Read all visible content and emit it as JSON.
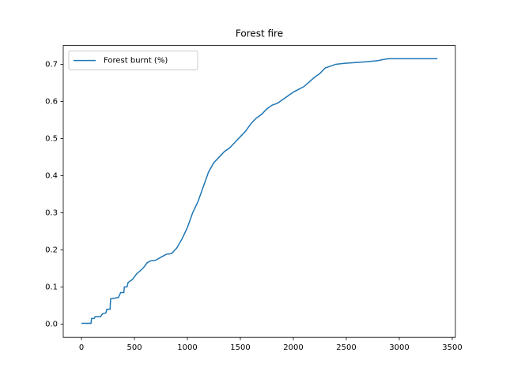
{
  "chart_data": {
    "type": "line",
    "title": "Forest fire",
    "x": [
      0,
      90,
      95,
      120,
      130,
      180,
      200,
      230,
      240,
      270,
      275,
      320,
      350,
      370,
      400,
      405,
      430,
      440,
      480,
      520,
      580,
      620,
      650,
      700,
      750,
      800,
      850,
      900,
      950,
      1000,
      1050,
      1100,
      1150,
      1200,
      1250,
      1300,
      1350,
      1400,
      1450,
      1500,
      1550,
      1600,
      1650,
      1700,
      1750,
      1800,
      1850,
      1900,
      1950,
      2000,
      2100,
      2200,
      2250,
      2300,
      2400,
      2500,
      2600,
      2700,
      2800,
      2850,
      2900,
      3360
    ],
    "series": [
      {
        "name": "Forest burnt (%)",
        "color": "#1f77b4",
        "values": [
          0.002,
          0.002,
          0.015,
          0.015,
          0.02,
          0.02,
          0.028,
          0.03,
          0.04,
          0.04,
          0.068,
          0.07,
          0.072,
          0.085,
          0.085,
          0.1,
          0.1,
          0.112,
          0.12,
          0.135,
          0.15,
          0.165,
          0.17,
          0.172,
          0.18,
          0.188,
          0.19,
          0.205,
          0.23,
          0.26,
          0.3,
          0.33,
          0.37,
          0.41,
          0.435,
          0.45,
          0.465,
          0.475,
          0.49,
          0.505,
          0.52,
          0.54,
          0.555,
          0.565,
          0.58,
          0.59,
          0.595,
          0.605,
          0.615,
          0.625,
          0.64,
          0.665,
          0.675,
          0.69,
          0.7,
          0.703,
          0.705,
          0.707,
          0.71,
          0.713,
          0.715,
          0.715
        ]
      }
    ],
    "xlim": [
      -172,
      3530
    ],
    "ylim": [
      -0.0357,
      0.7507
    ],
    "xticks": [
      0,
      500,
      1000,
      1500,
      2000,
      2500,
      3000,
      3500
    ],
    "yticks": [
      {
        "value": 0,
        "label": "0.0"
      },
      {
        "value": 0.1,
        "label": "0.1"
      },
      {
        "value": 0.2,
        "label": "0.2"
      },
      {
        "value": 0.3,
        "label": "0.3"
      },
      {
        "value": 0.4,
        "label": "0.4"
      },
      {
        "value": 0.5,
        "label": "0.5"
      },
      {
        "value": 0.6,
        "label": "0.6"
      },
      {
        "value": 0.7,
        "label": "0.7"
      }
    ],
    "legend": "upper left"
  }
}
